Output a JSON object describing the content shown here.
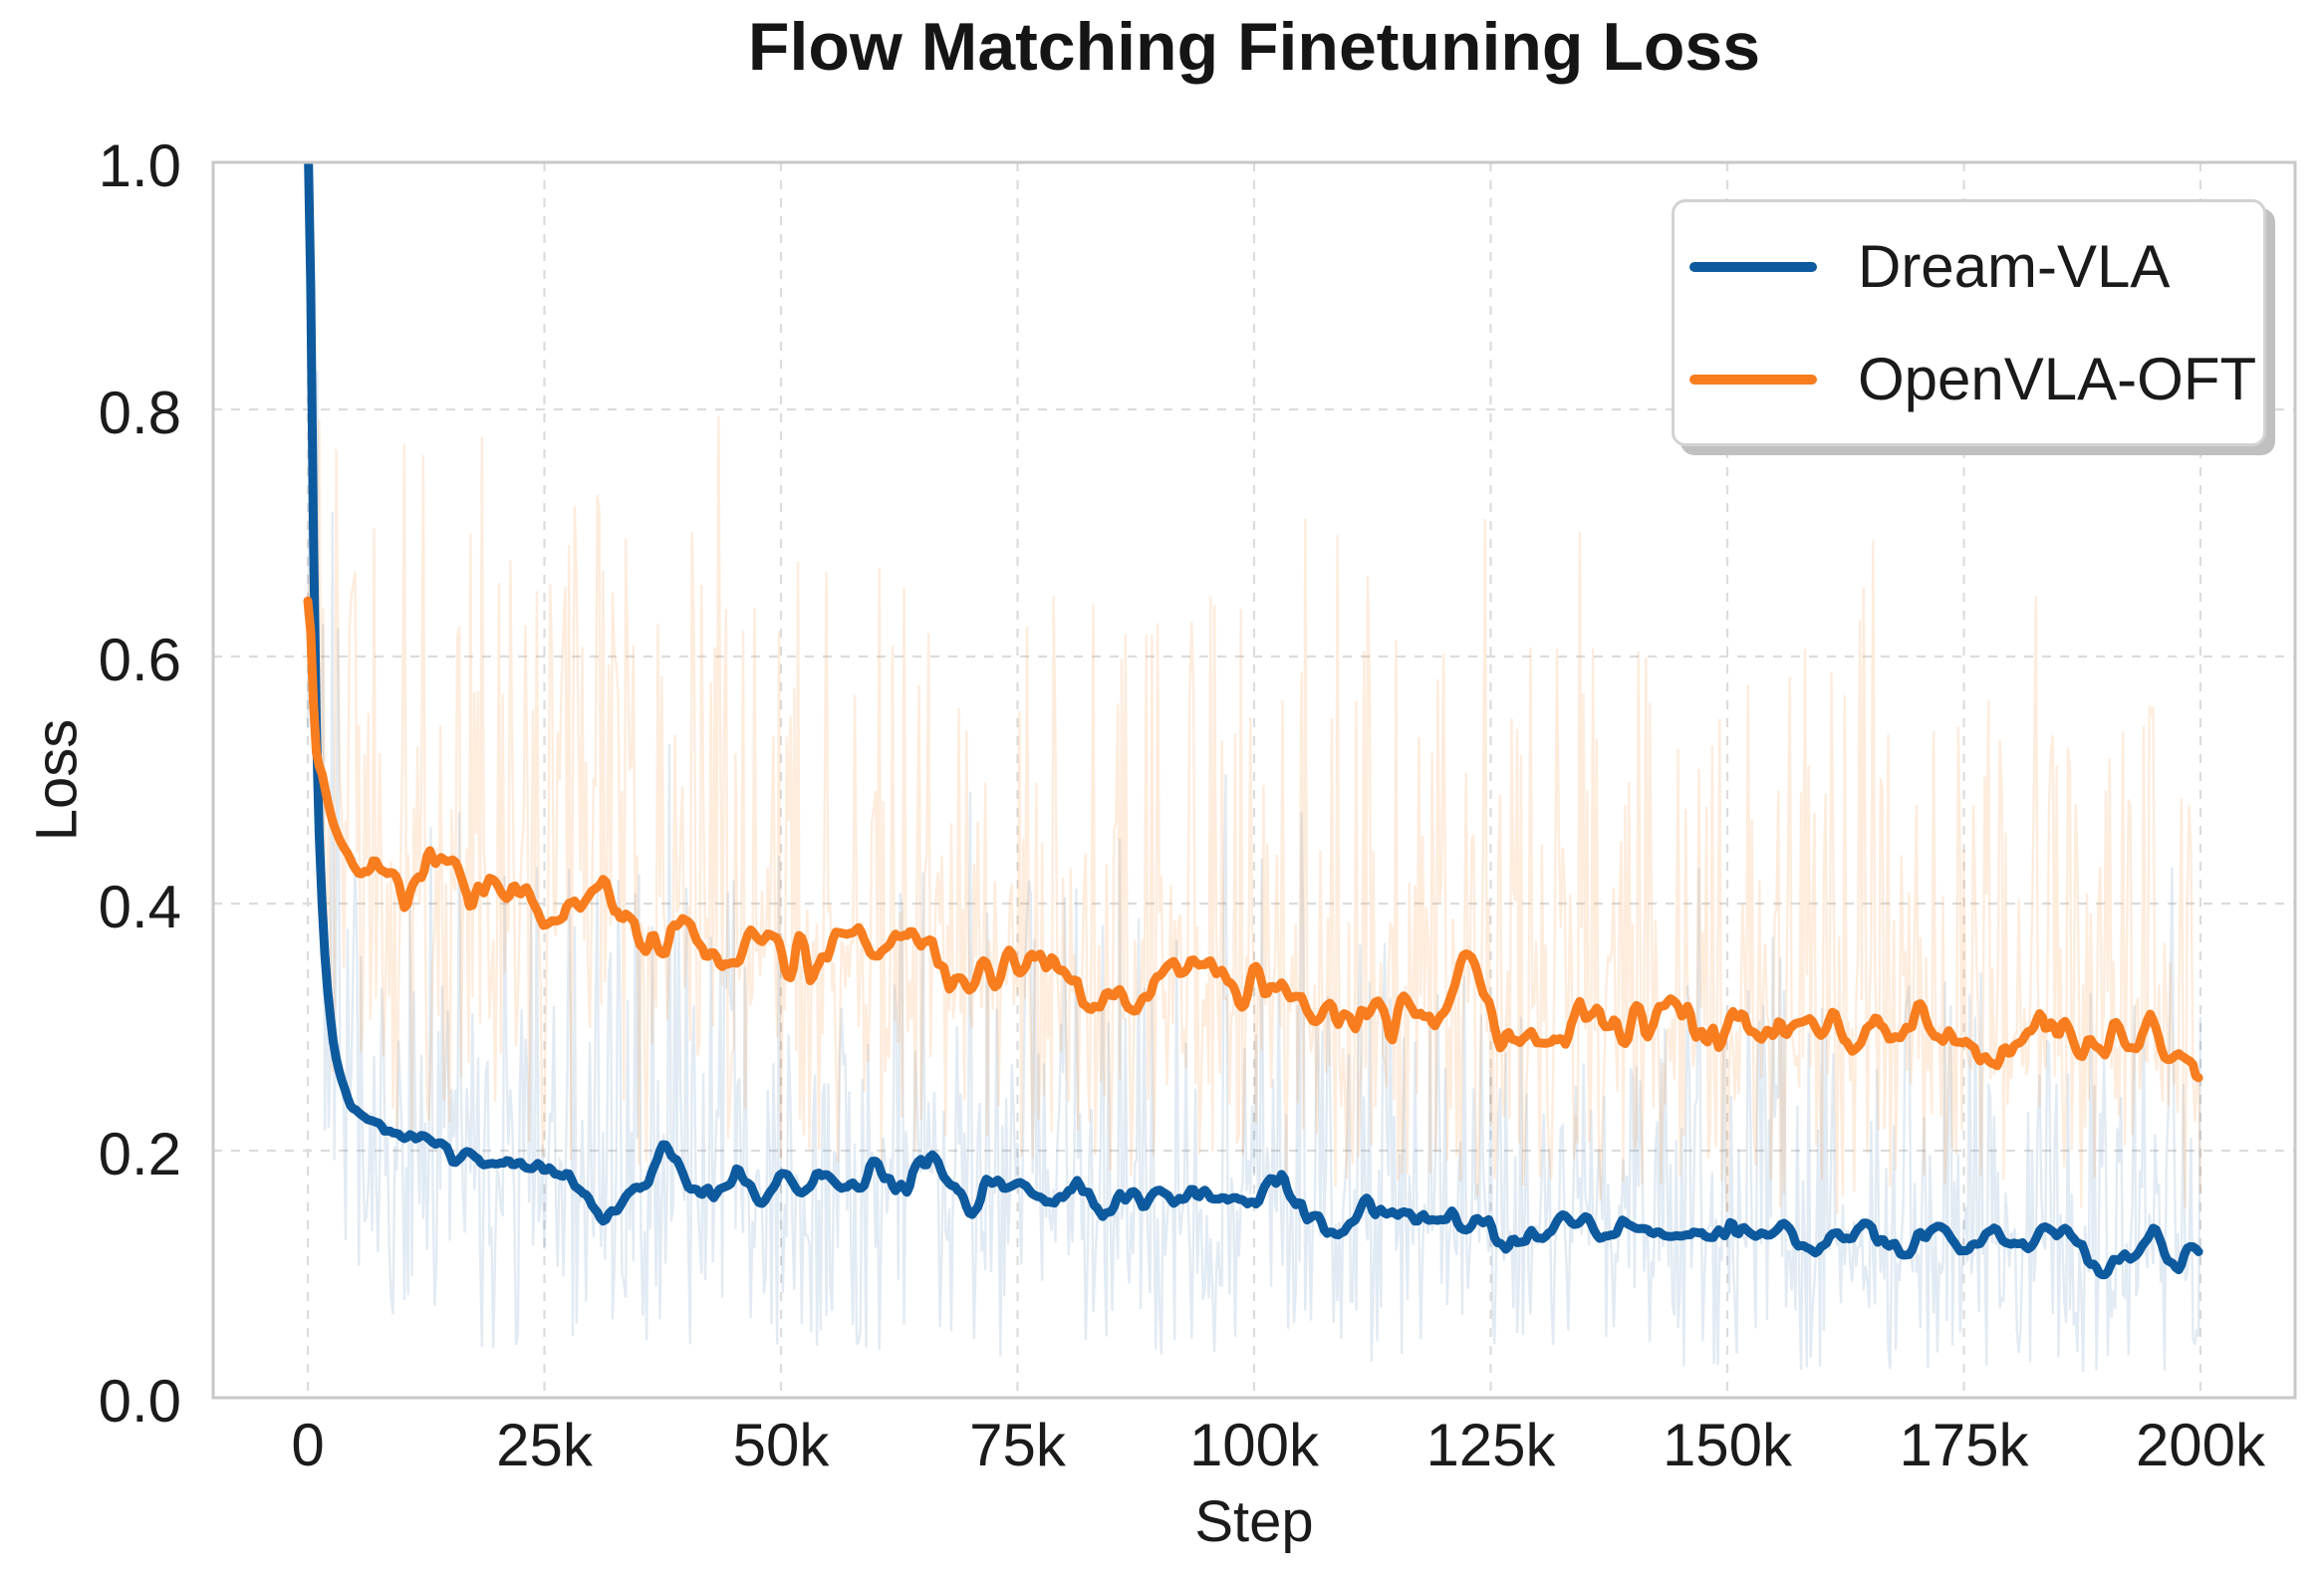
{
  "title": "Flow Matching Finetuning Loss",
  "legend": {
    "items": [
      {
        "label": "Dream-VLA",
        "color": "#0e5a9e"
      },
      {
        "label": "OpenVLA-OFT",
        "color": "#f87d1e"
      }
    ]
  },
  "style": {
    "background": "#ffffff",
    "grid_color": "#dcdcdc",
    "spine_color": "#c8c8c8",
    "text_color": "#1b1b1b",
    "mean_line_width": 9,
    "raw_line_width": 2.4
  },
  "chart_data": {
    "type": "line",
    "title": "Flow Matching Finetuning Loss",
    "xlabel": "Step",
    "ylabel": "Loss",
    "xlim": [
      -10000,
      210000
    ],
    "ylim": [
      0,
      1
    ],
    "grid": "dashed",
    "legend_position": "upper right",
    "xticks": [
      {
        "value": 0,
        "label": "0"
      },
      {
        "value": 25000,
        "label": "25k"
      },
      {
        "value": 50000,
        "label": "50k"
      },
      {
        "value": 75000,
        "label": "75k"
      },
      {
        "value": 100000,
        "label": "100k"
      },
      {
        "value": 125000,
        "label": "125k"
      },
      {
        "value": 150000,
        "label": "150k"
      },
      {
        "value": 175000,
        "label": "175k"
      },
      {
        "value": 200000,
        "label": "200k"
      }
    ],
    "yticks": [
      {
        "value": 0.0,
        "label": "0.0"
      },
      {
        "value": 0.2,
        "label": "0.2"
      },
      {
        "value": 0.4,
        "label": "0.4"
      },
      {
        "value": 0.6,
        "label": "0.6"
      },
      {
        "value": 0.8,
        "label": "0.8"
      },
      {
        "value": 1.0,
        "label": "1.0"
      }
    ],
    "series": [
      {
        "name": "Dream-VLA",
        "color": "#0e5a9e",
        "wiggle_amp": 0.011,
        "wiggle_seed": 101,
        "x": [
          0,
          300,
          800,
          1500,
          2500,
          3500,
          5000,
          7500,
          10000,
          12500,
          15000,
          17500,
          20000,
          22500,
          25000,
          27500,
          30000,
          32500,
          35000,
          37500,
          40000,
          42500,
          45000,
          47500,
          50000,
          52500,
          55000,
          57500,
          60000,
          62500,
          65000,
          67500,
          70000,
          72500,
          75000,
          77500,
          80000,
          82500,
          85000,
          87500,
          90000,
          92500,
          95000,
          97500,
          100000,
          102500,
          105000,
          107500,
          110000,
          112500,
          115000,
          117500,
          120000,
          122500,
          125000,
          127500,
          130000,
          132500,
          135000,
          137500,
          140000,
          142500,
          145000,
          147500,
          150000,
          152500,
          155000,
          157500,
          160000,
          162500,
          165000,
          167500,
          170000,
          172500,
          175000,
          177500,
          180000,
          182500,
          185000,
          187500,
          190000,
          192500,
          195000,
          197500,
          200000
        ],
        "y": [
          1.03,
          0.9,
          0.58,
          0.4,
          0.3,
          0.26,
          0.235,
          0.225,
          0.2,
          0.205,
          0.19,
          0.185,
          0.19,
          0.185,
          0.18,
          0.185,
          0.155,
          0.16,
          0.17,
          0.2,
          0.175,
          0.17,
          0.18,
          0.165,
          0.18,
          0.175,
          0.18,
          0.17,
          0.185,
          0.165,
          0.19,
          0.17,
          0.155,
          0.165,
          0.17,
          0.16,
          0.17,
          0.16,
          0.155,
          0.165,
          0.17,
          0.16,
          0.155,
          0.16,
          0.165,
          0.17,
          0.155,
          0.145,
          0.14,
          0.15,
          0.155,
          0.145,
          0.15,
          0.145,
          0.135,
          0.13,
          0.135,
          0.14,
          0.145,
          0.135,
          0.14,
          0.13,
          0.125,
          0.135,
          0.14,
          0.13,
          0.135,
          0.13,
          0.125,
          0.135,
          0.14,
          0.13,
          0.125,
          0.135,
          0.12,
          0.125,
          0.13,
          0.125,
          0.135,
          0.12,
          0.11,
          0.125,
          0.13,
          0.115,
          0.125
        ]
      },
      {
        "name": "OpenVLA-OFT",
        "color": "#f87d1e",
        "wiggle_amp": 0.016,
        "wiggle_seed": 202,
        "x": [
          0,
          300,
          800,
          1500,
          2500,
          3500,
          5000,
          7500,
          10000,
          12500,
          15000,
          17500,
          20000,
          22500,
          25000,
          27500,
          30000,
          32500,
          35000,
          37500,
          40000,
          42500,
          45000,
          47500,
          50000,
          52500,
          55000,
          57500,
          60000,
          62500,
          65000,
          67500,
          70000,
          72500,
          75000,
          77500,
          80000,
          82500,
          85000,
          87500,
          90000,
          92500,
          95000,
          97500,
          100000,
          102500,
          105000,
          107500,
          110000,
          112500,
          115000,
          117500,
          120000,
          122500,
          125000,
          127500,
          130000,
          132500,
          135000,
          137500,
          140000,
          142500,
          145000,
          147500,
          150000,
          152500,
          155000,
          157500,
          160000,
          162500,
          165000,
          167500,
          170000,
          172500,
          175000,
          177500,
          180000,
          182500,
          185000,
          187500,
          190000,
          192500,
          195000,
          197500,
          200000
        ],
        "y": [
          0.645,
          0.62,
          0.53,
          0.505,
          0.47,
          0.45,
          0.435,
          0.425,
          0.41,
          0.42,
          0.415,
          0.405,
          0.42,
          0.41,
          0.385,
          0.38,
          0.395,
          0.4,
          0.38,
          0.375,
          0.38,
          0.36,
          0.35,
          0.365,
          0.36,
          0.35,
          0.365,
          0.37,
          0.36,
          0.375,
          0.37,
          0.345,
          0.34,
          0.35,
          0.35,
          0.345,
          0.34,
          0.33,
          0.325,
          0.32,
          0.335,
          0.34,
          0.335,
          0.325,
          0.335,
          0.33,
          0.315,
          0.305,
          0.31,
          0.315,
          0.305,
          0.31,
          0.32,
          0.35,
          0.3,
          0.3,
          0.305,
          0.3,
          0.305,
          0.295,
          0.3,
          0.305,
          0.31,
          0.295,
          0.3,
          0.305,
          0.3,
          0.295,
          0.3,
          0.295,
          0.3,
          0.305,
          0.31,
          0.295,
          0.29,
          0.27,
          0.29,
          0.3,
          0.295,
          0.285,
          0.29,
          0.295,
          0.3,
          0.275,
          0.26
        ]
      }
    ],
    "raw_series": [
      {
        "name": "Dream-VLA (raw)",
        "color": "#0e5a9e",
        "alpha": 0.12,
        "seed": 1337,
        "step": 200,
        "envelope_x": [
          0,
          2000,
          5000,
          25000,
          50000,
          100000,
          150000,
          200000
        ],
        "envelope_lo": [
          0.35,
          0.05,
          0.04,
          0.04,
          0.035,
          0.03,
          0.02,
          0.02
        ],
        "envelope_hi": [
          1.0,
          0.75,
          0.5,
          0.46,
          0.44,
          0.4,
          0.36,
          0.34
        ]
      },
      {
        "name": "OpenVLA-OFT (raw)",
        "color": "#f87d1e",
        "alpha": 0.15,
        "seed": 777,
        "step": 200,
        "envelope_x": [
          0,
          2000,
          5000,
          25000,
          50000,
          100000,
          150000,
          200000
        ],
        "envelope_lo": [
          0.45,
          0.25,
          0.21,
          0.19,
          0.18,
          0.17,
          0.15,
          0.14
        ],
        "envelope_hi": [
          0.8,
          0.8,
          0.78,
          0.74,
          0.7,
          0.64,
          0.6,
          0.56
        ]
      }
    ]
  }
}
